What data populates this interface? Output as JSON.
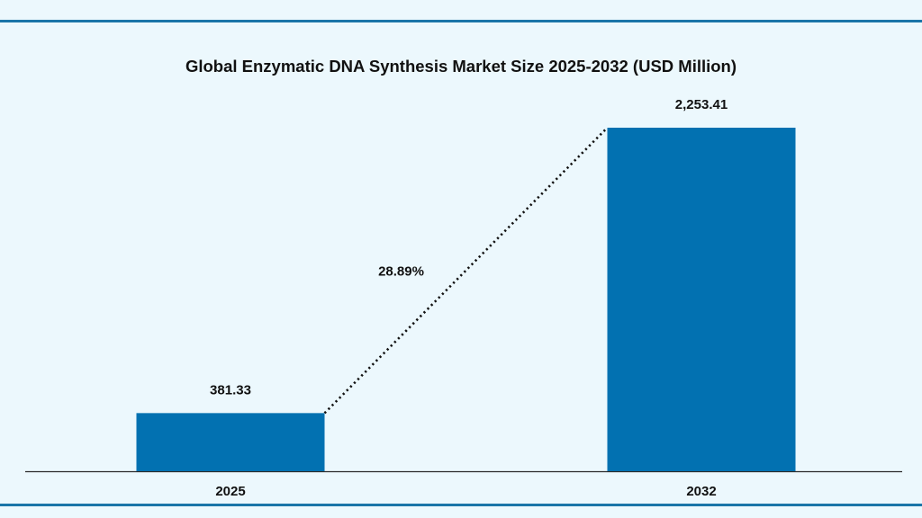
{
  "chart_data": {
    "type": "bar",
    "title": "Global Enzymatic DNA Synthesis Market Size 2025-2032 (USD Million)",
    "categories": [
      "2025",
      "2032"
    ],
    "values": [
      381.33,
      2253.41
    ],
    "value_labels": [
      "381.33",
      "2,253.41"
    ],
    "growth_label": "28.89%",
    "xlabel": "",
    "ylabel": "",
    "ylim": [
      0,
      2253.41
    ],
    "grid": false,
    "legend": "none",
    "colors": {
      "bar": "#0271b1",
      "border": "#1a75a8",
      "background": "#ecf8fd",
      "text": "#111111"
    }
  }
}
